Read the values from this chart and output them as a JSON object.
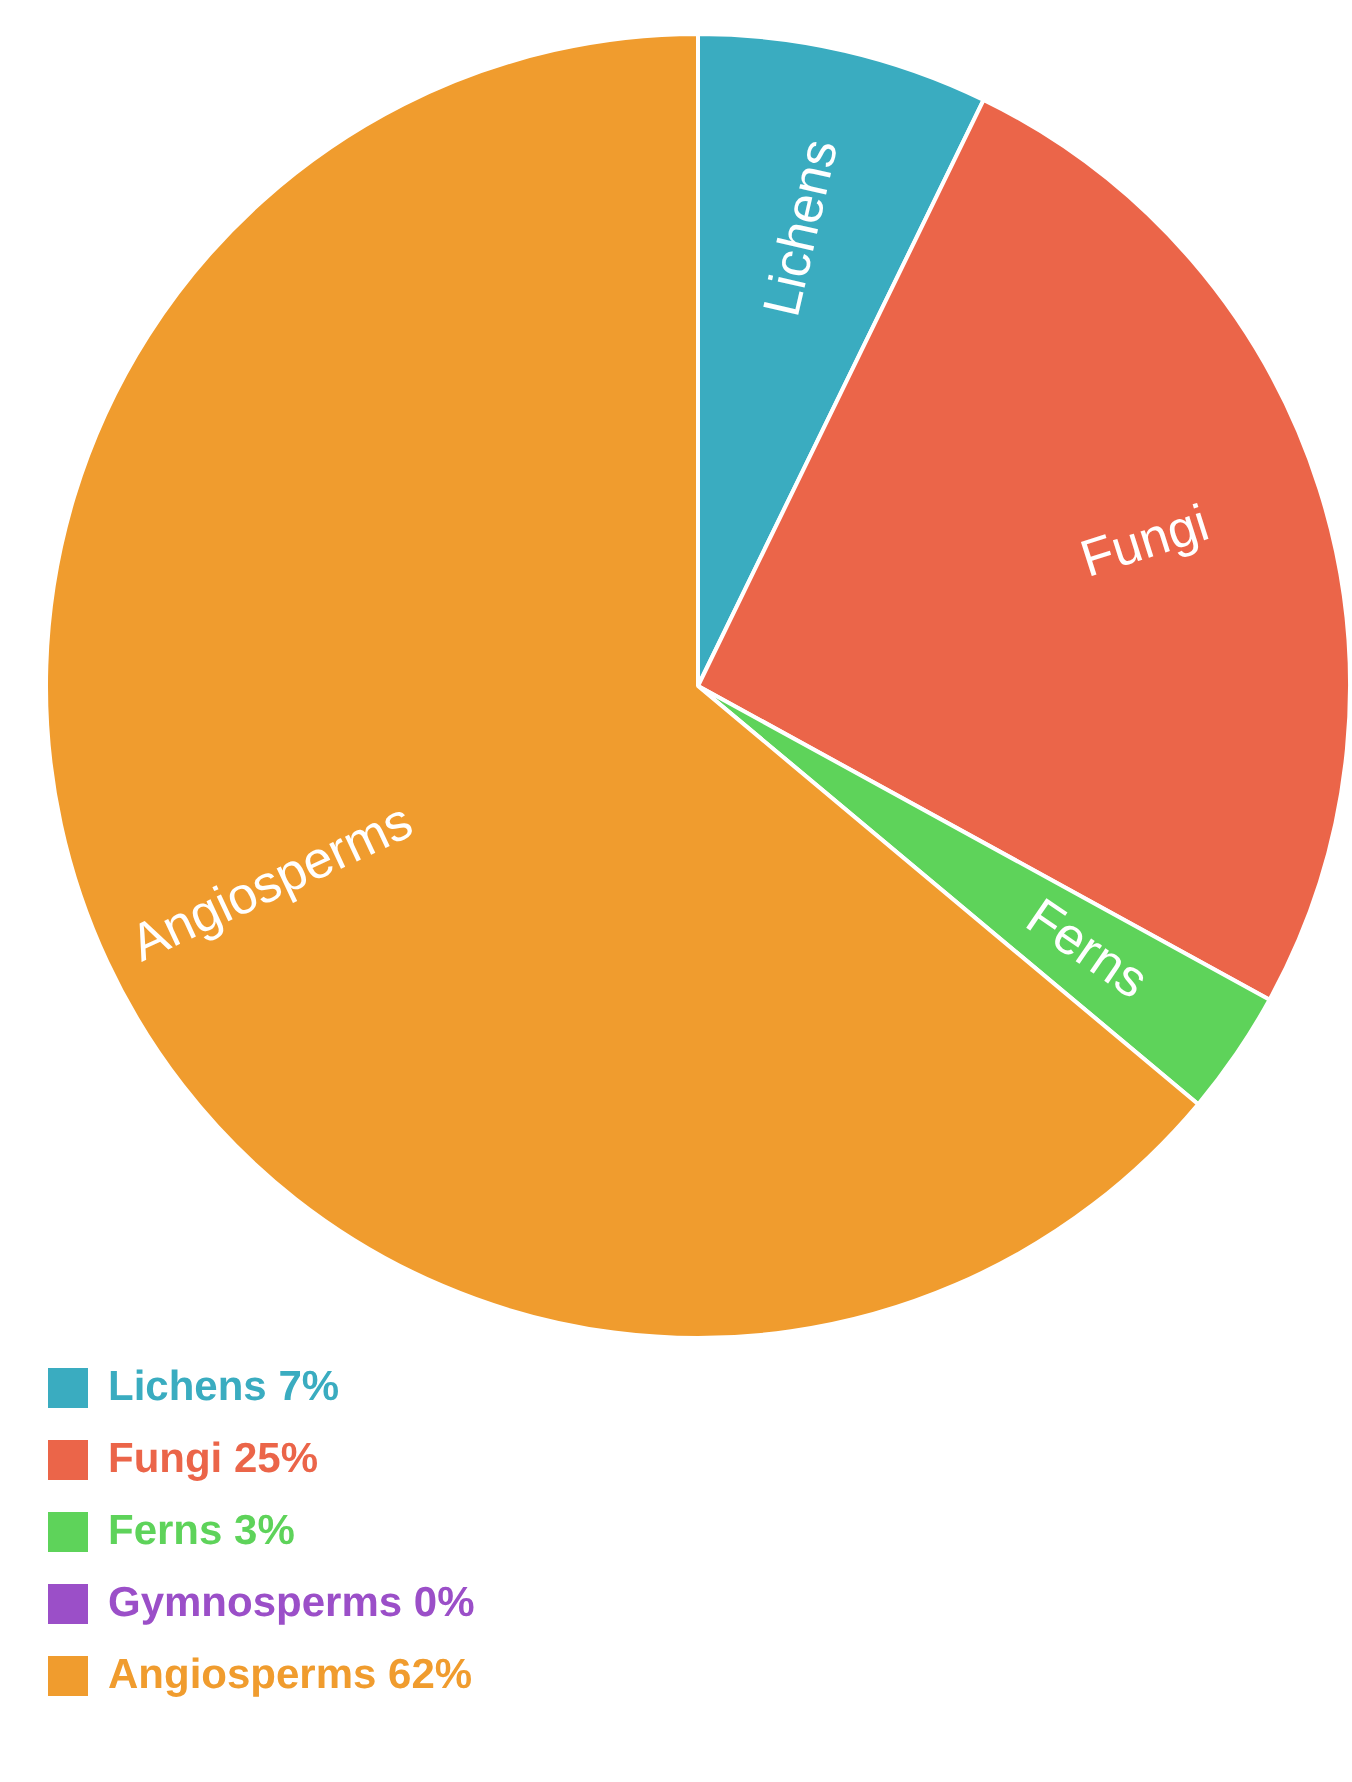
{
  "chart_data": {
    "type": "pie",
    "categories": [
      "Lichens",
      "Fungi",
      "Ferns",
      "Gymnosperms",
      "Angiosperms"
    ],
    "values": [
      7,
      25,
      3,
      0,
      62
    ],
    "value_labels": [
      "7%",
      "25%",
      "3%",
      "0%",
      "62%"
    ],
    "colors": [
      "#3aacc0",
      "#eb6549",
      "#5ed35a",
      "#9b4fc8",
      "#f09c2e"
    ],
    "legend": "bottom"
  }
}
